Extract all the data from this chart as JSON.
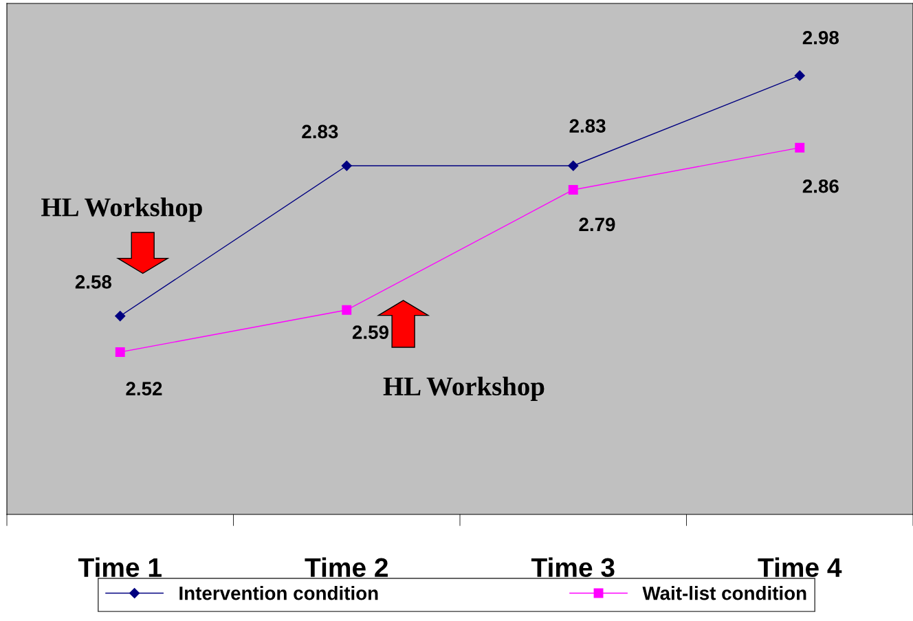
{
  "chart_data": {
    "type": "line",
    "categories": [
      "Time 1",
      "Time 2",
      "Time 3",
      "Time 4"
    ],
    "series": [
      {
        "name": "Intervention condition",
        "color": "#000080",
        "marker": "diamond",
        "values": [
          2.58,
          2.83,
          2.83,
          2.98
        ]
      },
      {
        "name": "Wait-list condition",
        "color": "#ff00ff",
        "marker": "square",
        "values": [
          2.52,
          2.59,
          2.79,
          2.86
        ]
      }
    ],
    "ylim": [
      2.25,
      3.1
    ],
    "tick_labels": "x",
    "data_labels": true,
    "grid": false,
    "legend": "bottom",
    "annotations": [
      "HL Workshop",
      "HL Workshop"
    ]
  }
}
